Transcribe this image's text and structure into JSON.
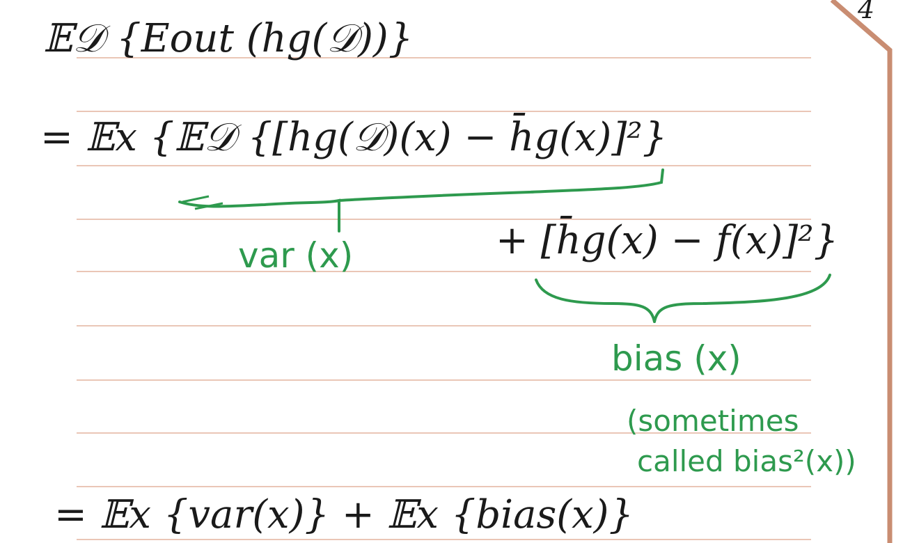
{
  "page_number": "4",
  "lines": {
    "line1": "𝔼𝒟 {Eout (hg(𝒟))}",
    "line2": "= 𝔼x {𝔼𝒟 {[hg(𝒟)(x) − h̄g(x)]²}",
    "line3": "+ [h̄g(x) − f(x)]²}",
    "line4": "= 𝔼x {var(x)} + 𝔼x {bias(x)}"
  },
  "annotations": {
    "var": "var (x)",
    "bias": "bias (x)",
    "sometimes": "(sometimes",
    "called": "called bias²(x))"
  },
  "colors": {
    "ink": "#1a1a1a",
    "green_ink": "#2e9a4e",
    "rule": "#e0a48a",
    "border": "#c98d72"
  }
}
